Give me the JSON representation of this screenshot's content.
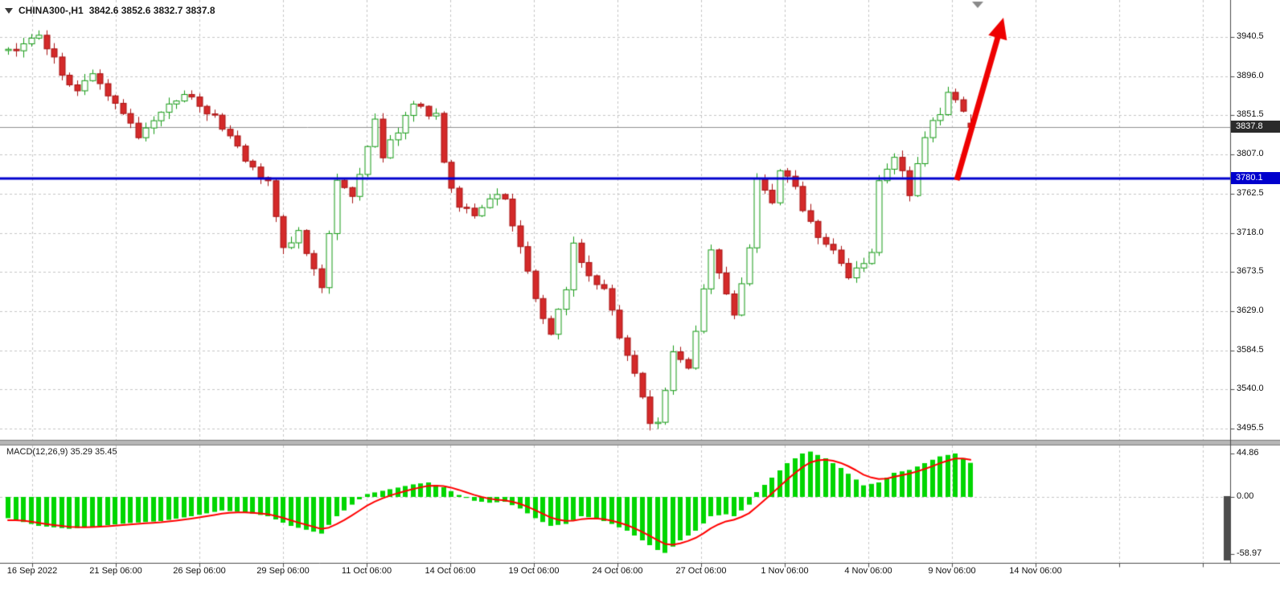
{
  "header": {
    "symbol_period": "CHINA300-,H1",
    "ohlc": "3842.6 3852.6 3832.7 3837.8"
  },
  "chart_data": {
    "type": "candlestick",
    "symbol": "CHINA300-",
    "timeframe": "H1",
    "last_bar": {
      "open": 3842.6,
      "high": 3852.6,
      "low": 3832.7,
      "close": 3837.8
    },
    "current_price": 3837.8,
    "support_line_price": 3780.1,
    "price_range_top": 3940.5,
    "price_range_bottom": 3495.5,
    "candle_count": 127,
    "price_axis": {
      "ticks": [
        "3940.5",
        "3896.0",
        "3851.5",
        "3807.0",
        "3762.5",
        "3718.0",
        "3673.5",
        "3629.0",
        "3584.5",
        "3540.0",
        "3495.5"
      ],
      "current_price_badge": "3837.8",
      "support_badge": "3780.1"
    },
    "time_axis": {
      "labels": [
        "16 Sep 2022",
        "21 Sep 06:00",
        "26 Sep 06:00",
        "29 Sep 06:00",
        "11 Oct 06:00",
        "14 Oct 06:00",
        "19 Oct 06:00",
        "24 Oct 06:00",
        "27 Oct 06:00",
        "1 Nov 06:00",
        "4 Nov 06:00",
        "9 Nov 06:00",
        "14 Nov 06:00"
      ]
    },
    "price_path_anchors": [
      [
        0,
        3925
      ],
      [
        4,
        3940
      ],
      [
        7,
        3900
      ],
      [
        9,
        3880
      ],
      [
        11,
        3900
      ],
      [
        15,
        3855
      ],
      [
        17,
        3830
      ],
      [
        23,
        3875
      ],
      [
        27,
        3850
      ],
      [
        31,
        3800
      ],
      [
        34,
        3775
      ],
      [
        36,
        3700
      ],
      [
        38,
        3720
      ],
      [
        41,
        3655
      ],
      [
        43,
        3780
      ],
      [
        45,
        3760
      ],
      [
        48,
        3845
      ],
      [
        49,
        3805
      ],
      [
        53,
        3865
      ],
      [
        56,
        3850
      ],
      [
        57,
        3795
      ],
      [
        59,
        3750
      ],
      [
        61,
        3735
      ],
      [
        63,
        3755
      ],
      [
        65,
        3760
      ],
      [
        67,
        3700
      ],
      [
        69,
        3640
      ],
      [
        71,
        3605
      ],
      [
        73,
        3650
      ],
      [
        74,
        3705
      ],
      [
        76,
        3665
      ],
      [
        78,
        3655
      ],
      [
        80,
        3600
      ],
      [
        82,
        3560
      ],
      [
        84,
        3505
      ],
      [
        85,
        3500
      ],
      [
        87,
        3580
      ],
      [
        89,
        3565
      ],
      [
        91,
        3650
      ],
      [
        92,
        3700
      ],
      [
        94,
        3650
      ],
      [
        95,
        3625
      ],
      [
        97,
        3700
      ],
      [
        98,
        3780
      ],
      [
        100,
        3755
      ],
      [
        101,
        3790
      ],
      [
        103,
        3770
      ],
      [
        104,
        3740
      ],
      [
        106,
        3715
      ],
      [
        108,
        3695
      ],
      [
        110,
        3670
      ],
      [
        111,
        3675
      ],
      [
        113,
        3700
      ],
      [
        114,
        3780
      ],
      [
        116,
        3800
      ],
      [
        117,
        3790
      ],
      [
        118,
        3760
      ],
      [
        120,
        3830
      ],
      [
        122,
        3855
      ],
      [
        123,
        3875
      ],
      [
        125,
        3855
      ],
      [
        126,
        3838
      ]
    ],
    "annotation": {
      "type": "arrow-up-right",
      "color": "#ee0000"
    },
    "macd": {
      "label": "MACD(12,26,9) 35.29 35.45",
      "macd_value": 35.29,
      "signal_value": 35.45,
      "axis_labels": [
        "44.86",
        "0.00",
        "-58.97"
      ],
      "axis_values": [
        44.86,
        0,
        -58.97
      ],
      "histogram_anchors": [
        [
          0,
          -22
        ],
        [
          4,
          -30
        ],
        [
          8,
          -33
        ],
        [
          12,
          -30
        ],
        [
          16,
          -27
        ],
        [
          20,
          -25
        ],
        [
          24,
          -20
        ],
        [
          28,
          -14
        ],
        [
          31,
          -16
        ],
        [
          34,
          -20
        ],
        [
          37,
          -30
        ],
        [
          41,
          -38
        ],
        [
          43,
          -20
        ],
        [
          45,
          -8
        ],
        [
          47,
          3
        ],
        [
          50,
          8
        ],
        [
          53,
          13
        ],
        [
          55,
          15
        ],
        [
          57,
          10
        ],
        [
          59,
          2
        ],
        [
          61,
          -4
        ],
        [
          63,
          -6
        ],
        [
          65,
          -5
        ],
        [
          67,
          -12
        ],
        [
          69,
          -22
        ],
        [
          71,
          -30
        ],
        [
          73,
          -28
        ],
        [
          75,
          -20
        ],
        [
          77,
          -22
        ],
        [
          79,
          -28
        ],
        [
          81,
          -35
        ],
        [
          83,
          -45
        ],
        [
          85,
          -55
        ],
        [
          86,
          -58
        ],
        [
          88,
          -45
        ],
        [
          90,
          -35
        ],
        [
          92,
          -20
        ],
        [
          94,
          -18
        ],
        [
          95,
          -20
        ],
        [
          97,
          -8
        ],
        [
          98,
          5
        ],
        [
          100,
          20
        ],
        [
          102,
          35
        ],
        [
          104,
          45
        ],
        [
          105,
          47
        ],
        [
          107,
          40
        ],
        [
          109,
          30
        ],
        [
          111,
          18
        ],
        [
          112,
          12
        ],
        [
          114,
          15
        ],
        [
          116,
          25
        ],
        [
          118,
          28
        ],
        [
          120,
          35
        ],
        [
          122,
          42
        ],
        [
          124,
          45
        ],
        [
          126,
          35.29
        ]
      ]
    },
    "colors": {
      "bull_stroke": "#169b16",
      "bull_fill": "#ffffff",
      "bear_stroke": "#a81414",
      "bear_fill": "#d42a2a",
      "grid": "#c6c6c6",
      "support_line": "#0000cd",
      "current_price_line": "#909090",
      "macd_histogram": "#00d600",
      "macd_signal": "#ff0000",
      "arrow": "#ee0000",
      "badge_current_bg": "#2b2b2b",
      "badge_support_bg": "#0000cd"
    }
  }
}
